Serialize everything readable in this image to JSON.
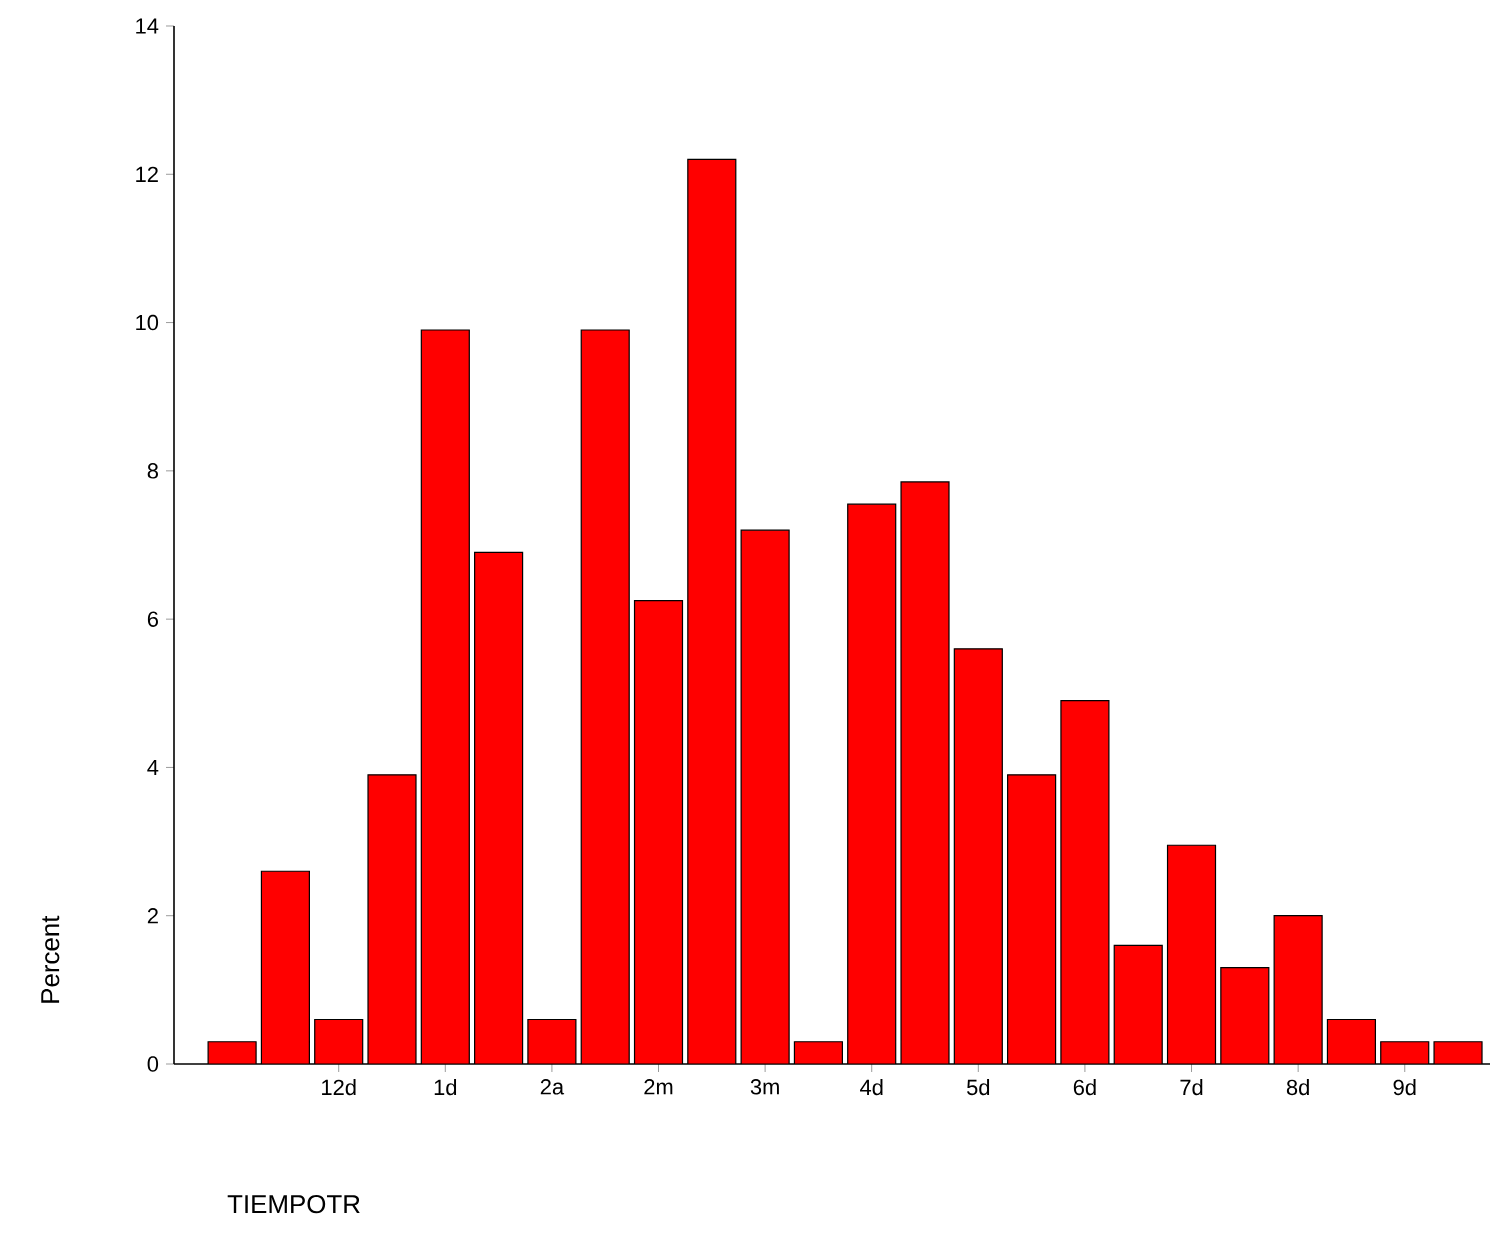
{
  "chart_data": {
    "type": "bar",
    "xlabel": "TIEMPOTR",
    "ylabel": "Percent",
    "categories": [
      null,
      null,
      "12d",
      null,
      "1d",
      null,
      "2a",
      null,
      "2m",
      null,
      "3m",
      null,
      "4d",
      null,
      "5d",
      null,
      "6d",
      null,
      "7d",
      null,
      "8d",
      null,
      "9d",
      null
    ],
    "values": [
      0.3,
      2.6,
      0.6,
      3.9,
      9.9,
      6.9,
      0.6,
      9.9,
      6.25,
      12.2,
      7.2,
      0.3,
      7.55,
      7.85,
      5.6,
      3.9,
      4.9,
      1.6,
      2.95,
      1.3,
      2.0,
      0.6,
      0.3,
      0.3
    ],
    "color": "#ff0000",
    "ylim": [
      0,
      14
    ],
    "yticks": [
      0,
      2,
      4,
      6,
      8,
      10,
      12,
      14
    ]
  }
}
